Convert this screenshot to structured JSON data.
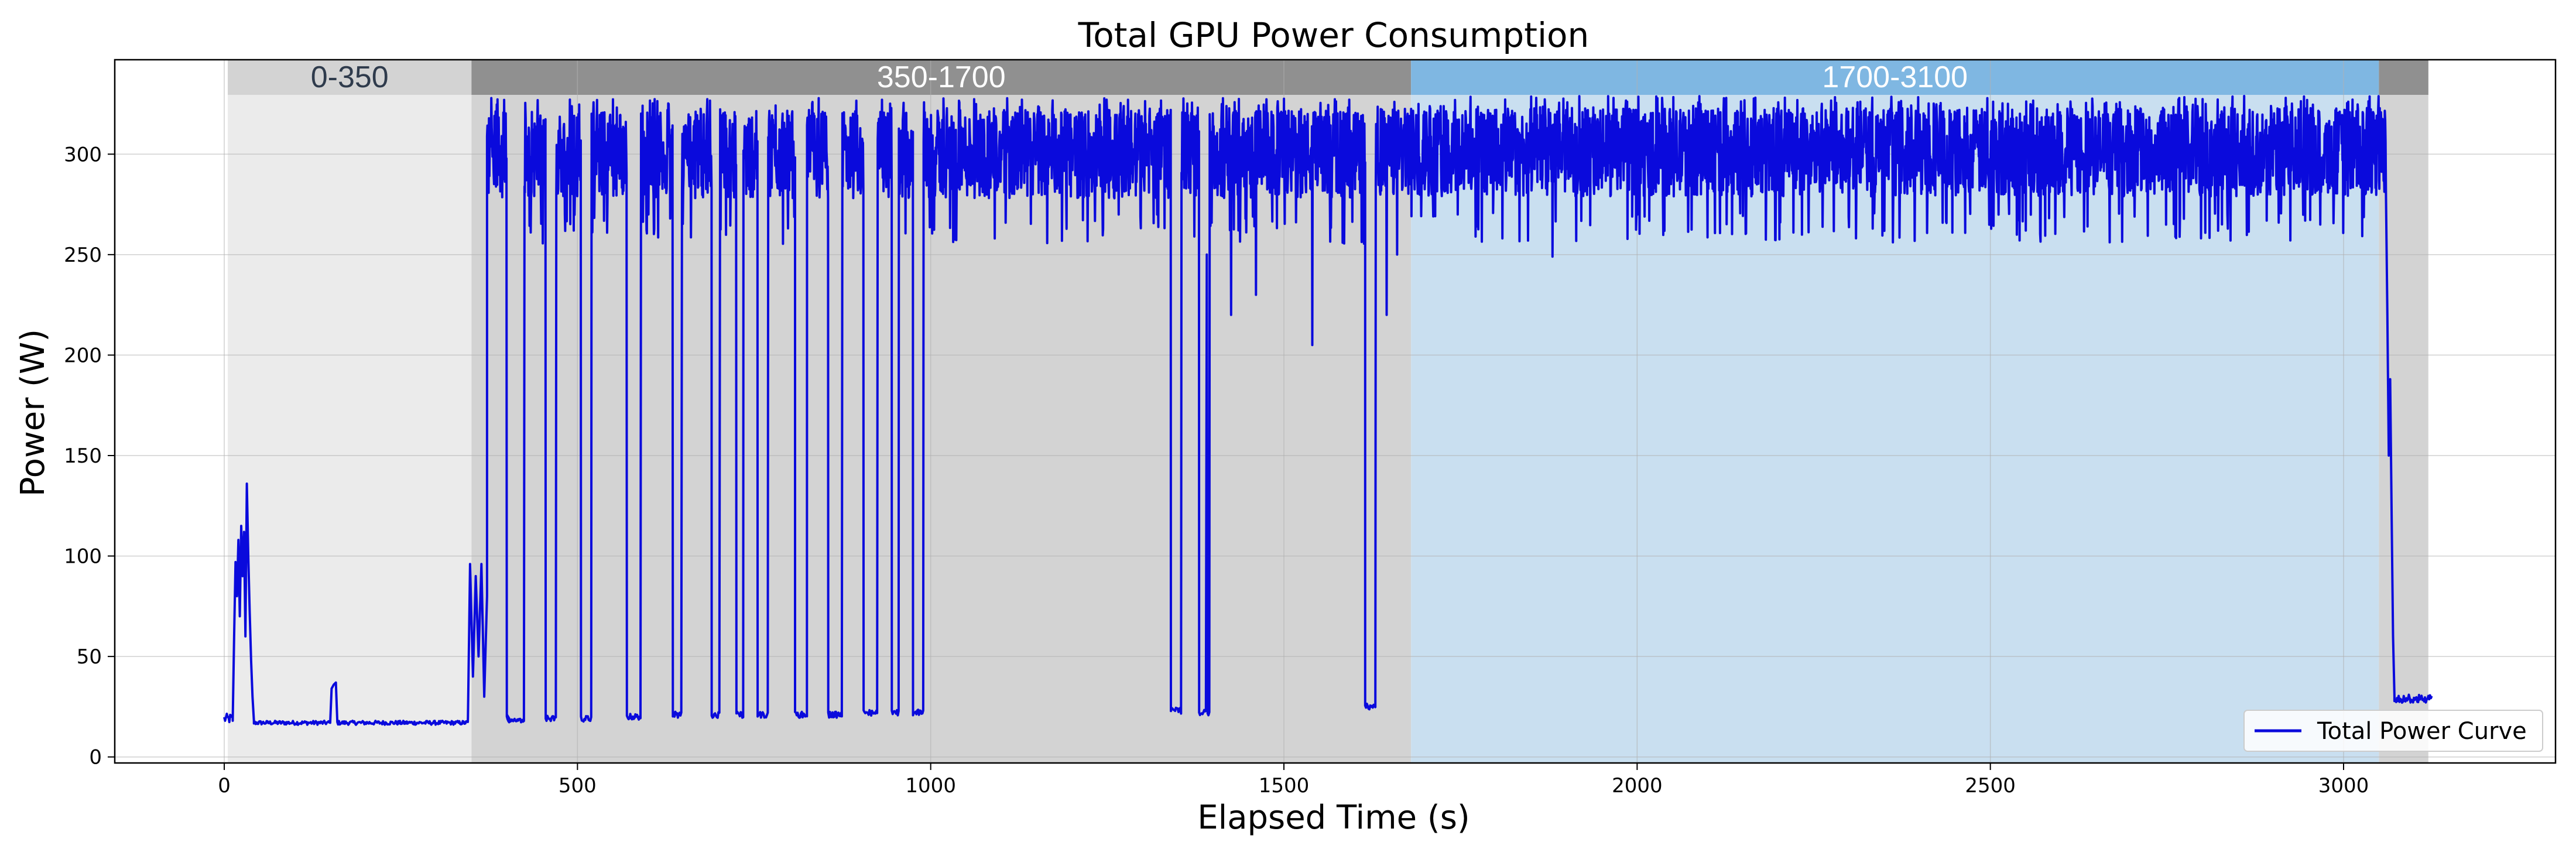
{
  "chart_data": {
    "type": "line",
    "title": "Total GPU Power Consumption",
    "xlabel": "Elapsed Time (s)",
    "ylabel": "Power (W)",
    "xlim": [
      -155,
      3300
    ],
    "ylim": [
      -3,
      347
    ],
    "xticks": [
      0,
      500,
      1000,
      1500,
      2000,
      2500,
      3000
    ],
    "yticks": [
      0,
      50,
      100,
      150,
      200,
      250,
      300
    ],
    "grid": true,
    "legend": {
      "position": "bottom-right",
      "entries": [
        "Total Power Curve"
      ]
    },
    "series": [
      {
        "name": "Total Power Curve",
        "color": "#0a0adc",
        "segments": [
          {
            "type": "idle",
            "x0": 0,
            "x1": 12,
            "base": 19,
            "amp": 5
          },
          {
            "type": "points",
            "points": [
              [
                12,
                18
              ],
              [
                14,
                60
              ],
              [
                16,
                97
              ],
              [
                18,
                80
              ],
              [
                20,
                108
              ],
              [
                22,
                70
              ],
              [
                24,
                115
              ],
              [
                26,
                90
              ],
              [
                28,
                112
              ],
              [
                30,
                60
              ],
              [
                32,
                136
              ],
              [
                34,
                100
              ],
              [
                36,
                72
              ],
              [
                38,
                48
              ],
              [
                40,
                30
              ],
              [
                42,
                18
              ]
            ]
          },
          {
            "type": "idle",
            "x0": 42,
            "x1": 150,
            "base": 17,
            "amp": 2
          },
          {
            "type": "points",
            "points": [
              [
                150,
                17
              ],
              [
                152,
                34
              ],
              [
                155,
                36
              ],
              [
                158,
                37
              ],
              [
                160,
                18
              ]
            ]
          },
          {
            "type": "idle",
            "x0": 160,
            "x1": 345,
            "base": 17,
            "amp": 2
          },
          {
            "type": "points",
            "points": [
              [
                345,
                20
              ],
              [
                348,
                96
              ],
              [
                352,
                40
              ],
              [
                356,
                90
              ],
              [
                360,
                50
              ],
              [
                364,
                96
              ],
              [
                368,
                30
              ],
              [
                372,
                80
              ]
            ]
          },
          {
            "type": "burst",
            "x0": 372,
            "x1": 400,
            "base": 300,
            "amp": 22
          },
          {
            "type": "idle",
            "x0": 400,
            "x1": 402,
            "base": 20,
            "amp": 3
          },
          {
            "type": "idle",
            "x0": 402,
            "x1": 405,
            "base": 18,
            "amp": 2
          },
          {
            "type": "idle",
            "x0": 400,
            "x1": 402,
            "base": 20,
            "amp": 3
          },
          {
            "type": "idle",
            "x0": 402,
            "x1": 405,
            "base": 18,
            "amp": 2
          },
          {
            "type": "idle",
            "x0": 405,
            "x1": 407,
            "base": 18,
            "amp": 2
          },
          {
            "type": "idle",
            "x0": 407,
            "x1": 409,
            "base": 18,
            "amp": 2
          },
          {
            "type": "idle",
            "x0": 409,
            "x1": 411,
            "base": 18,
            "amp": 2
          },
          {
            "type": "idle",
            "x0": 411,
            "x1": 413,
            "base": 18,
            "amp": 2
          },
          {
            "type": "idle",
            "x0": 413,
            "x1": 415,
            "base": 18,
            "amp": 2
          },
          {
            "type": "idle",
            "x0": 415,
            "x1": 417,
            "base": 18,
            "amp": 2
          },
          {
            "type": "idle",
            "x0": 417,
            "x1": 419,
            "base": 18,
            "amp": 2
          },
          {
            "type": "idle",
            "x0": 419,
            "x1": 421,
            "base": 18,
            "amp": 2
          },
          {
            "type": "idle",
            "x0": 421,
            "x1": 423,
            "base": 18,
            "amp": 2
          },
          {
            "type": "idle",
            "x0": 423,
            "x1": 425,
            "base": 18,
            "amp": 2
          },
          {
            "type": "burst",
            "x0": 425,
            "x1": 455,
            "base": 300,
            "amp": 22
          },
          {
            "type": "idle",
            "x0": 455,
            "x1": 470,
            "base": 19,
            "amp": 3
          },
          {
            "type": "burst",
            "x0": 470,
            "x1": 505,
            "base": 300,
            "amp": 22
          },
          {
            "type": "idle",
            "x0": 505,
            "x1": 520,
            "base": 19,
            "amp": 3
          },
          {
            "type": "burst",
            "x0": 520,
            "x1": 570,
            "base": 300,
            "amp": 22
          },
          {
            "type": "idle",
            "x0": 570,
            "x1": 590,
            "base": 20,
            "amp": 3
          },
          {
            "type": "burst",
            "x0": 590,
            "x1": 635,
            "base": 300,
            "amp": 22
          },
          {
            "type": "idle",
            "x0": 635,
            "x1": 648,
            "base": 21,
            "amp": 3
          },
          {
            "type": "burst",
            "x0": 648,
            "x1": 690,
            "base": 300,
            "amp": 22
          },
          {
            "type": "idle",
            "x0": 690,
            "x1": 702,
            "base": 21,
            "amp": 3
          },
          {
            "type": "burst",
            "x0": 702,
            "x1": 725,
            "base": 300,
            "amp": 22
          },
          {
            "type": "idle",
            "x0": 725,
            "x1": 735,
            "base": 21,
            "amp": 3
          },
          {
            "type": "burst",
            "x0": 735,
            "x1": 755,
            "base": 300,
            "amp": 22
          },
          {
            "type": "idle",
            "x0": 755,
            "x1": 770,
            "base": 21,
            "amp": 3
          },
          {
            "type": "burst",
            "x0": 770,
            "x1": 808,
            "base": 300,
            "amp": 22
          },
          {
            "type": "idle",
            "x0": 808,
            "x1": 825,
            "base": 21,
            "amp": 3
          },
          {
            "type": "burst",
            "x0": 825,
            "x1": 855,
            "base": 300,
            "amp": 22
          },
          {
            "type": "idle",
            "x0": 855,
            "x1": 875,
            "base": 21,
            "amp": 3
          },
          {
            "type": "burst",
            "x0": 875,
            "x1": 905,
            "base": 300,
            "amp": 22
          },
          {
            "type": "idle",
            "x0": 905,
            "x1": 925,
            "base": 22,
            "amp": 3
          },
          {
            "type": "burst",
            "x0": 925,
            "x1": 945,
            "base": 300,
            "amp": 22
          },
          {
            "type": "idle",
            "x0": 945,
            "x1": 955,
            "base": 22,
            "amp": 3
          },
          {
            "type": "burst",
            "x0": 955,
            "x1": 975,
            "base": 300,
            "amp": 22
          },
          {
            "type": "idle",
            "x0": 975,
            "x1": 990,
            "base": 22,
            "amp": 3
          },
          {
            "type": "burst",
            "x0": 990,
            "x1": 1340,
            "base": 300,
            "amp": 22
          },
          {
            "type": "idle",
            "x0": 1340,
            "x1": 1355,
            "base": 23,
            "amp": 3
          },
          {
            "type": "burst",
            "x0": 1355,
            "x1": 1380,
            "base": 300,
            "amp": 22
          },
          {
            "type": "idle",
            "x0": 1380,
            "x1": 1395,
            "base": 22,
            "amp": 3
          },
          {
            "type": "burst",
            "x0": 1395,
            "x1": 1615,
            "base": 300,
            "amp": 22
          },
          {
            "type": "idle",
            "x0": 1615,
            "x1": 1630,
            "base": 25,
            "amp": 3
          },
          {
            "type": "burst",
            "x0": 1630,
            "x1": 3060,
            "base": 301,
            "amp": 22
          },
          {
            "type": "points",
            "points": [
              [
                3060,
                280
              ],
              [
                3062,
                220
              ],
              [
                3064,
                150
              ],
              [
                3066,
                188
              ],
              [
                3068,
                120
              ],
              [
                3070,
                60
              ],
              [
                3072,
                30
              ]
            ]
          },
          {
            "type": "idle",
            "x0": 3072,
            "x1": 3125,
            "base": 29,
            "amp": 4
          }
        ],
        "dips": [
          [
            600,
            270
          ],
          [
            1390,
            250
          ],
          [
            1425,
            220
          ],
          [
            1460,
            230
          ],
          [
            1540,
            205
          ],
          [
            1645,
            220
          ],
          [
            1660,
            250
          ],
          [
            1880,
            249
          ],
          [
            2550,
            262
          ],
          [
            2840,
            257
          ]
        ]
      }
    ],
    "phases": [
      {
        "label": "0-350",
        "x0": 5,
        "x1": 350,
        "fill": "#ebebeb",
        "header": "#d3d3d3",
        "text": "#2f3b4c"
      },
      {
        "label": "350-1700",
        "x0": 350,
        "x1": 1680,
        "fill": "#d3d3d3",
        "header": "#909090",
        "text": "#ffffff"
      },
      {
        "label": "1700-3100",
        "x0": 1680,
        "x1": 3050,
        "fill": "#c9dff0",
        "header": "#7fb7e2",
        "text": "#ffffff"
      },
      {
        "label": "",
        "x0": 3050,
        "x1": 3120,
        "fill": "#d3d3d3",
        "header": "#909090",
        "text": "#ffffff"
      }
    ]
  }
}
